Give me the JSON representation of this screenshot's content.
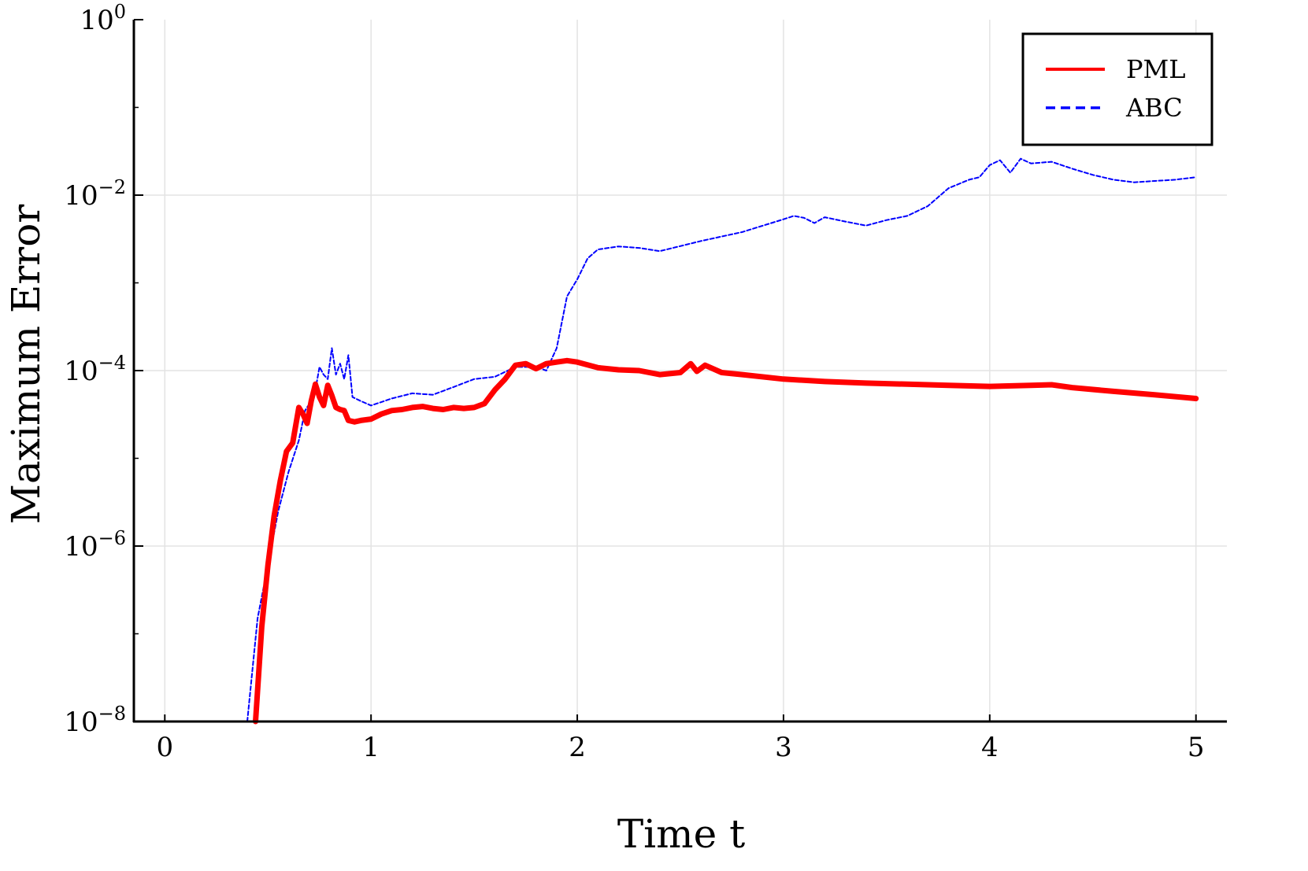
{
  "chart_data": {
    "type": "line",
    "xlabel": "Time t",
    "ylabel": "Maximum Error",
    "x_ticks": [
      "0",
      "1",
      "2",
      "3",
      "4",
      "5"
    ],
    "y_tick_base": "10",
    "y_tick_exponents": [
      "0",
      "−2",
      "−4",
      "−6",
      "−8"
    ],
    "y_scale": "log",
    "xlim": [
      -0.15,
      5.15
    ],
    "ylim": [
      1e-08,
      1
    ],
    "grid": true,
    "legend_position": "top-right",
    "series": [
      {
        "name": "PML",
        "color": "#ff0000",
        "style": "solid",
        "x": [
          0.44,
          0.47,
          0.5,
          0.53,
          0.56,
          0.59,
          0.62,
          0.65,
          0.67,
          0.69,
          0.71,
          0.73,
          0.75,
          0.77,
          0.79,
          0.81,
          0.83,
          0.85,
          0.87,
          0.89,
          0.92,
          0.95,
          1.0,
          1.05,
          1.1,
          1.15,
          1.2,
          1.25,
          1.3,
          1.35,
          1.4,
          1.45,
          1.5,
          1.55,
          1.6,
          1.65,
          1.7,
          1.75,
          1.8,
          1.85,
          1.9,
          1.95,
          2.0,
          2.1,
          2.2,
          2.3,
          2.4,
          2.5,
          2.55,
          2.58,
          2.62,
          2.7,
          2.8,
          3.0,
          3.2,
          3.4,
          3.6,
          3.8,
          4.0,
          4.2,
          4.3,
          4.4,
          4.6,
          4.8,
          5.0
        ],
        "y": [
          1e-08,
          1.2e-07,
          6e-07,
          2.2e-06,
          5.5e-06,
          1.2e-05,
          1.5e-05,
          3.8e-05,
          3.2e-05,
          2.5e-05,
          4.5e-05,
          7e-05,
          5e-05,
          4e-05,
          6.8e-05,
          5.2e-05,
          3.8e-05,
          3.6e-05,
          3.5e-05,
          2.7e-05,
          2.6e-05,
          2.7e-05,
          2.8e-05,
          3.2e-05,
          3.5e-05,
          3.6e-05,
          3.8e-05,
          3.9e-05,
          3.7e-05,
          3.6e-05,
          3.8e-05,
          3.7e-05,
          3.8e-05,
          4.2e-05,
          6e-05,
          8e-05,
          0.000115,
          0.00012,
          0.000105,
          0.00012,
          0.000125,
          0.00013,
          0.000125,
          0.000108,
          0.000102,
          0.0001,
          9e-05,
          9.5e-05,
          0.00012,
          9.8e-05,
          0.000115,
          9.5e-05,
          9e-05,
          8e-05,
          7.5e-05,
          7.2e-05,
          7e-05,
          6.8e-05,
          6.6e-05,
          6.8e-05,
          6.9e-05,
          6.4e-05,
          5.8e-05,
          5.3e-05,
          4.8e-05
        ]
      },
      {
        "name": "ABC",
        "color": "#0000ff",
        "style": "dashed",
        "x": [
          0.4,
          0.45,
          0.5,
          0.55,
          0.6,
          0.65,
          0.68,
          0.71,
          0.73,
          0.75,
          0.77,
          0.79,
          0.81,
          0.83,
          0.85,
          0.87,
          0.89,
          0.91,
          0.95,
          1.0,
          1.1,
          1.2,
          1.3,
          1.4,
          1.5,
          1.6,
          1.7,
          1.8,
          1.85,
          1.9,
          1.95,
          2.0,
          2.05,
          2.1,
          2.2,
          2.3,
          2.4,
          2.6,
          2.8,
          3.0,
          3.05,
          3.1,
          3.15,
          3.2,
          3.3,
          3.4,
          3.5,
          3.6,
          3.7,
          3.8,
          3.9,
          3.95,
          4.0,
          4.05,
          4.1,
          4.15,
          4.2,
          4.3,
          4.4,
          4.5,
          4.6,
          4.7,
          4.8,
          4.9,
          5.0
        ],
        "y": [
          1e-08,
          1.5e-07,
          6e-07,
          2.5e-06,
          7e-06,
          1.6e-05,
          3.5e-05,
          4.5e-05,
          6e-05,
          0.00011,
          9e-05,
          8e-05,
          0.00018,
          9e-05,
          0.00012,
          8e-05,
          0.00015,
          5e-05,
          4.5e-05,
          4e-05,
          4.8e-05,
          5.5e-05,
          5.3e-05,
          6.5e-05,
          8e-05,
          8.5e-05,
          0.00011,
          0.00011,
          0.0001,
          0.00018,
          0.0007,
          0.0011,
          0.0019,
          0.0024,
          0.0026,
          0.0025,
          0.0023,
          0.003,
          0.0038,
          0.0053,
          0.0058,
          0.0055,
          0.0048,
          0.0056,
          0.005,
          0.0045,
          0.0052,
          0.0058,
          0.0075,
          0.012,
          0.015,
          0.016,
          0.022,
          0.025,
          0.018,
          0.026,
          0.023,
          0.024,
          0.02,
          0.017,
          0.015,
          0.014,
          0.0145,
          0.015,
          0.016
        ]
      }
    ]
  }
}
